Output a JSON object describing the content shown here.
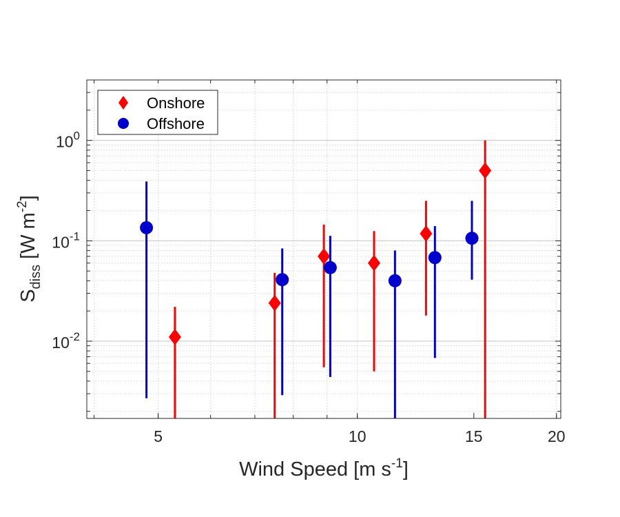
{
  "chart_data": {
    "type": "scatter",
    "title": "",
    "xlabel": {
      "base": "Wind Speed [m s",
      "sup": "-1",
      "end": "]"
    },
    "ylabel": {
      "base": "S",
      "sub": "diss",
      "rest": " [W m",
      "sup": "-2",
      "end": "]"
    },
    "xscale": "log",
    "yscale": "log",
    "xlim": [
      3.9,
      20.3
    ],
    "ylim": [
      0.0017,
      4.0
    ],
    "xticks": [
      {
        "value": 5,
        "label": "5"
      },
      {
        "value": 10,
        "label": "10"
      },
      {
        "value": 15,
        "label": "15"
      },
      {
        "value": 20,
        "label": "20"
      }
    ],
    "yticks": [
      {
        "value": 0.01,
        "base": "10",
        "exp": "-2"
      },
      {
        "value": 0.1,
        "base": "10",
        "exp": "-1"
      },
      {
        "value": 1,
        "base": "10",
        "exp": "0"
      }
    ],
    "grid": true,
    "legend_position": "top-left",
    "series": [
      {
        "name": "Onshore",
        "marker": "diamond",
        "color": "#ff0000",
        "points": [
          {
            "x": 5.3,
            "y": 0.011,
            "lo": 0.0015,
            "hi": 0.022
          },
          {
            "x": 7.5,
            "y": 0.024,
            "lo": 0.0015,
            "hi": 0.048
          },
          {
            "x": 8.9,
            "y": 0.07,
            "lo": 0.0055,
            "hi": 0.145
          },
          {
            "x": 10.6,
            "y": 0.06,
            "lo": 0.005,
            "hi": 0.125
          },
          {
            "x": 12.7,
            "y": 0.118,
            "lo": 0.018,
            "hi": 0.25
          },
          {
            "x": 15.6,
            "y": 0.5,
            "lo": 0.0015,
            "hi": 1.0
          }
        ]
      },
      {
        "name": "Offshore",
        "marker": "circle",
        "color": "#0000cc",
        "points": [
          {
            "x": 4.8,
            "y": 0.135,
            "lo": 0.0027,
            "hi": 0.39
          },
          {
            "x": 7.7,
            "y": 0.041,
            "lo": 0.0029,
            "hi": 0.084
          },
          {
            "x": 9.1,
            "y": 0.054,
            "lo": 0.0044,
            "hi": 0.112
          },
          {
            "x": 11.4,
            "y": 0.04,
            "lo": 0.0015,
            "hi": 0.08
          },
          {
            "x": 13.1,
            "y": 0.068,
            "lo": 0.0068,
            "hi": 0.14
          },
          {
            "x": 14.9,
            "y": 0.106,
            "lo": 0.041,
            "hi": 0.25
          }
        ]
      }
    ]
  }
}
